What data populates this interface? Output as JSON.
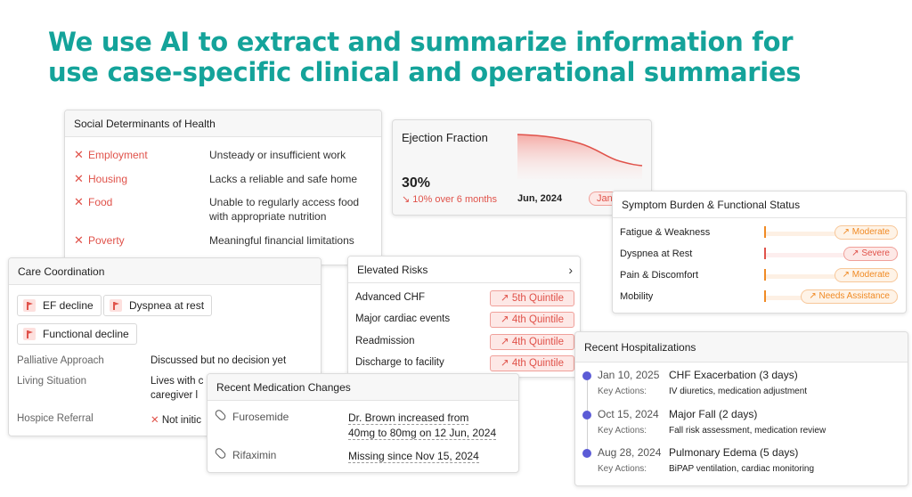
{
  "headline": {
    "line1": "We use AI to extract and summarize information for",
    "line2": "use case-specific clinical and operational summaries"
  },
  "colors": {
    "accent": "#14a39a",
    "alert": "#e0524a",
    "moderate": "#f08a24",
    "timeline": "#5b5bd6"
  },
  "sdoh": {
    "title": "Social Determinants of Health",
    "items": [
      {
        "label": "Employment",
        "value": "Unsteady or insufficient work"
      },
      {
        "label": "Housing",
        "value": "Lacks a reliable and safe home"
      },
      {
        "label": "Food",
        "value": "Unable to regularly access food with appropriate nutrition"
      },
      {
        "label": "Poverty",
        "value": "Meaningful financial limitations"
      }
    ]
  },
  "ejection_fraction": {
    "title": "Ejection Fraction",
    "value": "30%",
    "change": "10% over 6 months",
    "date": "Jun, 2024",
    "pill": "Jan,"
  },
  "symptoms": {
    "title": "Symptom Burden & Functional Status",
    "items": [
      {
        "label": "Fatigue & Weakness",
        "level": "Moderate",
        "severity": "moderate"
      },
      {
        "label": "Dyspnea at Rest",
        "level": "Severe",
        "severity": "severe"
      },
      {
        "label": "Pain & Discomfort",
        "level": "Moderate",
        "severity": "moderate"
      },
      {
        "label": "Mobility",
        "level": "Needs Assistance",
        "severity": "moderate"
      }
    ]
  },
  "care": {
    "title": "Care Coordination",
    "flags": [
      "EF decline",
      "Dyspnea at rest",
      "Functional decline"
    ],
    "rows": [
      {
        "label": "Palliative Approach",
        "value": "Discussed but no decision yet"
      },
      {
        "label": "Living Situation",
        "value": "Lives with c",
        "value2": "caregiver l"
      },
      {
        "label": "Hospice Referral",
        "value": "Not initic"
      }
    ]
  },
  "risks": {
    "title": "Elevated Risks",
    "items": [
      {
        "label": "Advanced CHF",
        "quintile": "5th Quintile"
      },
      {
        "label": "Major cardiac events",
        "quintile": "4th Quintile"
      },
      {
        "label": "Readmission",
        "quintile": "4th Quintile"
      },
      {
        "label": "Discharge to facility",
        "quintile": "4th Quintile"
      }
    ]
  },
  "meds": {
    "title": "Recent Medication Changes",
    "items": [
      {
        "name": "Furosemide",
        "note1": "Dr. Brown increased from",
        "note2": "40mg to 80mg on 12 Jun, 2024"
      },
      {
        "name": "Rifaximin",
        "note1": "Missing since Nov 15, 2024",
        "note2": ""
      }
    ]
  },
  "hospitalizations": {
    "title": "Recent Hospitalizations",
    "key_actions_label": "Key Actions:",
    "items": [
      {
        "date": "Jan 10, 2025",
        "event": "CHF Exacerbation (3 days)",
        "actions": "IV diuretics, medication adjustment"
      },
      {
        "date": "Oct 15, 2024",
        "event": "Major Fall (2 days)",
        "actions": "Fall risk assessment, medication review"
      },
      {
        "date": "Aug 28, 2024",
        "event": "Pulmonary Edema (5 days)",
        "actions": "BiPAP ventilation, cardiac monitoring"
      }
    ]
  }
}
